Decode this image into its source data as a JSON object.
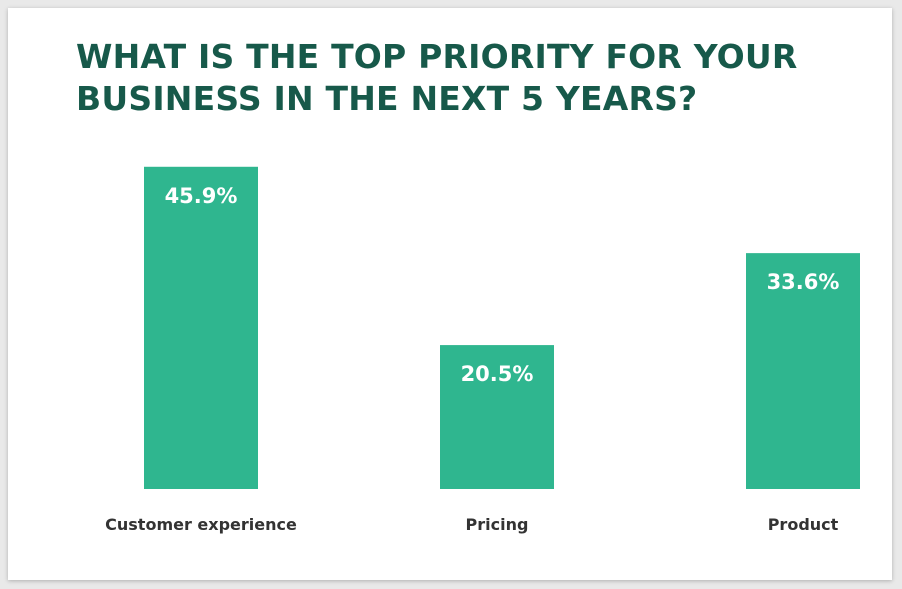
{
  "chart_data": {
    "type": "bar",
    "title": "WHAT IS THE TOP PRIORITY FOR YOUR BUSINESS IN THE NEXT 5 YEARS?",
    "categories": [
      "Customer experience",
      "Pricing",
      "Product"
    ],
    "values": [
      45.9,
      20.5,
      33.6
    ],
    "value_labels": [
      "45.9%",
      "20.5%",
      "33.6%"
    ],
    "ylim": [
      0,
      50
    ],
    "grid": false,
    "legend": "none",
    "colors": {
      "bar": "#2fb68f",
      "title": "#17594a",
      "label": "#333333",
      "value_text": "#ffffff"
    }
  }
}
